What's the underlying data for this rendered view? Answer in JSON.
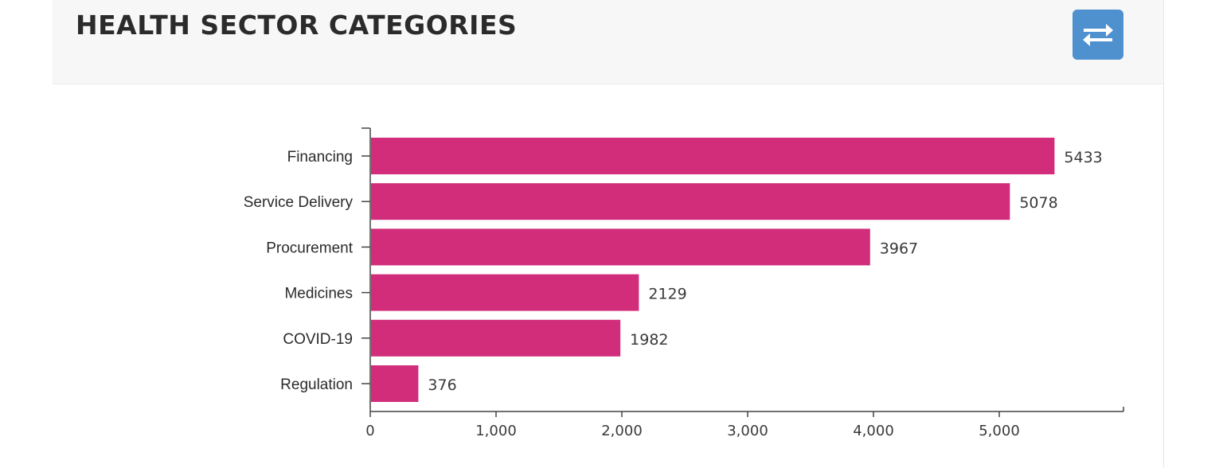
{
  "header": {
    "title": "HEALTH SECTOR CATEGORIES",
    "swap_icon": "swap-arrows-icon"
  },
  "colors": {
    "bar": "#d12d7a",
    "button": "#4f90cf",
    "axis": "#444444"
  },
  "chart_data": {
    "type": "bar",
    "orientation": "horizontal",
    "title": "",
    "xlabel": "",
    "ylabel": "",
    "categories": [
      "Financing",
      "Service Delivery",
      "Procurement",
      "Medicines",
      "COVID-19",
      "Regulation"
    ],
    "values": [
      5433,
      5078,
      3967,
      2129,
      1982,
      376
    ],
    "value_labels": [
      "5433",
      "5078",
      "3967",
      "2129",
      "1982",
      "376"
    ],
    "xlim": [
      0,
      6000
    ],
    "x_ticks": [
      0,
      1000,
      2000,
      3000,
      4000,
      5000
    ],
    "x_tick_labels": [
      "0",
      "1,000",
      "2,000",
      "3,000",
      "4,000",
      "5,000"
    ],
    "grid": false,
    "legend": "none"
  }
}
